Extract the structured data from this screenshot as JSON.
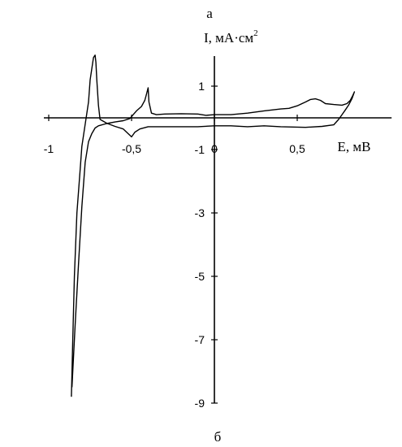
{
  "top_label": "а",
  "bottom_label": "б",
  "chart_data": {
    "type": "line",
    "title": "",
    "xlabel": "E, мВ",
    "ylabel_main": "I, мА·см",
    "ylabel_sup": "2",
    "xlim": [
      -1,
      1.05
    ],
    "ylim": [
      -9,
      2
    ],
    "x_ticks": [
      {
        "value": -1,
        "label": "-1"
      },
      {
        "value": -0.5,
        "label": "-0,5"
      },
      {
        "value": 0,
        "label": "0"
      },
      {
        "value": 0.5,
        "label": "0,5"
      }
    ],
    "y_ticks": [
      {
        "value": 1,
        "label": "1"
      },
      {
        "value": -1,
        "label": "-1"
      },
      {
        "value": -3,
        "label": "-3"
      },
      {
        "value": -5,
        "label": "-5"
      },
      {
        "value": -7,
        "label": "-7"
      },
      {
        "value": -9,
        "label": "-9"
      }
    ],
    "series": [
      {
        "points": [
          [
            -0.86,
            -8.5
          ],
          [
            -0.84,
            -6.5
          ],
          [
            -0.82,
            -4.6
          ],
          [
            -0.8,
            -2.8
          ],
          [
            -0.78,
            -1.4
          ],
          [
            -0.76,
            -0.75
          ],
          [
            -0.74,
            -0.5
          ],
          [
            -0.72,
            -0.32
          ],
          [
            -0.7,
            -0.25
          ],
          [
            -0.65,
            -0.18
          ],
          [
            -0.6,
            -0.13
          ],
          [
            -0.55,
            -0.09
          ],
          [
            -0.51,
            -0.02
          ],
          [
            -0.49,
            0.1
          ],
          [
            -0.47,
            0.22
          ],
          [
            -0.44,
            0.36
          ],
          [
            -0.42,
            0.55
          ],
          [
            -0.41,
            0.75
          ],
          [
            -0.4,
            0.95
          ],
          [
            -0.395,
            0.5
          ],
          [
            -0.38,
            0.15
          ],
          [
            -0.35,
            0.1
          ],
          [
            -0.3,
            0.12
          ],
          [
            -0.2,
            0.13
          ],
          [
            -0.1,
            0.12
          ],
          [
            -0.05,
            0.08
          ],
          [
            0.0,
            0.1
          ],
          [
            0.1,
            0.1
          ],
          [
            0.2,
            0.15
          ],
          [
            0.3,
            0.22
          ],
          [
            0.4,
            0.28
          ],
          [
            0.45,
            0.3
          ],
          [
            0.5,
            0.38
          ],
          [
            0.55,
            0.5
          ],
          [
            0.58,
            0.58
          ],
          [
            0.61,
            0.6
          ],
          [
            0.64,
            0.55
          ],
          [
            0.67,
            0.45
          ],
          [
            0.72,
            0.42
          ],
          [
            0.77,
            0.4
          ],
          [
            0.8,
            0.45
          ],
          [
            0.82,
            0.55
          ],
          [
            0.835,
            0.7
          ],
          [
            0.845,
            0.82
          ],
          [
            0.83,
            0.6
          ],
          [
            0.81,
            0.4
          ],
          [
            0.79,
            0.25
          ],
          [
            0.77,
            0.1
          ],
          [
            0.75,
            -0.05
          ],
          [
            0.72,
            -0.22
          ],
          [
            0.65,
            -0.27
          ],
          [
            0.55,
            -0.3
          ],
          [
            0.4,
            -0.28
          ],
          [
            0.3,
            -0.25
          ],
          [
            0.2,
            -0.28
          ],
          [
            0.1,
            -0.25
          ],
          [
            0.0,
            -0.25
          ],
          [
            -0.1,
            -0.28
          ],
          [
            -0.2,
            -0.28
          ],
          [
            -0.3,
            -0.28
          ],
          [
            -0.4,
            -0.28
          ],
          [
            -0.45,
            -0.35
          ],
          [
            -0.48,
            -0.45
          ],
          [
            -0.5,
            -0.6
          ],
          [
            -0.52,
            -0.5
          ],
          [
            -0.55,
            -0.35
          ],
          [
            -0.6,
            -0.27
          ],
          [
            -0.65,
            -0.17
          ],
          [
            -0.69,
            -0.05
          ],
          [
            -0.7,
            0.4
          ],
          [
            -0.71,
            1.2
          ],
          [
            -0.715,
            1.75
          ],
          [
            -0.72,
            1.98
          ],
          [
            -0.73,
            1.9
          ],
          [
            -0.75,
            1.2
          ],
          [
            -0.76,
            0.5
          ],
          [
            -0.78,
            -0.2
          ],
          [
            -0.8,
            -0.9
          ],
          [
            -0.81,
            -1.6
          ],
          [
            -0.83,
            -3.0
          ],
          [
            -0.845,
            -5.0
          ],
          [
            -0.855,
            -7.0
          ],
          [
            -0.862,
            -8.5
          ],
          [
            -0.863,
            -8.8
          ]
        ]
      }
    ]
  }
}
